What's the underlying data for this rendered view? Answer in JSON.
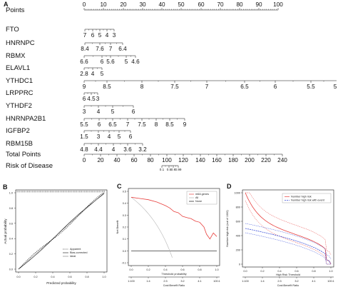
{
  "panels": {
    "A": {
      "letter": "A",
      "rows": [
        {
          "label": "Points",
          "ticks": [
            "0",
            "10",
            "20",
            "30",
            "40",
            "50",
            "60",
            "70",
            "80",
            "90",
            "100"
          ]
        },
        {
          "label": "FTO",
          "ticks": [
            "7",
            "6",
            "5",
            "4",
            "3"
          ]
        },
        {
          "label": "HNRNPC",
          "ticks": [
            "8.4",
            "7.6",
            "7",
            "6.4"
          ]
        },
        {
          "label": "RBMX",
          "ticks": [
            "6.6",
            "6",
            "5.6",
            "5",
            "4.6"
          ]
        },
        {
          "label": "ELAVL1",
          "ticks": [
            "2.8",
            "4",
            "5"
          ]
        },
        {
          "label": "YTHDC1",
          "ticks": [
            "9",
            "8.5",
            "8",
            "7.5",
            "7",
            "6.5",
            "6",
            "5.5",
            "5"
          ]
        },
        {
          "label": "LRPPRC",
          "ticks": [
            "6",
            "4.5",
            "3"
          ]
        },
        {
          "label": "YTHDF2",
          "ticks": [
            "3",
            "4",
            "5",
            "6"
          ]
        },
        {
          "label": "HNRNPA2B1",
          "ticks": [
            "5.5",
            "6",
            "6.5",
            "7",
            "7.5",
            "8",
            "8.5",
            "9"
          ]
        },
        {
          "label": "IGFBP2",
          "ticks": [
            "1.5",
            "3",
            "4",
            "5",
            "6"
          ]
        },
        {
          "label": "RBM15B",
          "ticks": [
            "4.8",
            "4.4",
            "4",
            "3.6",
            "3.2"
          ]
        },
        {
          "label": "Total Points",
          "ticks": [
            "0",
            "20",
            "40",
            "60",
            "80",
            "100",
            "120",
            "140",
            "160",
            "180",
            "200",
            "220",
            "240"
          ]
        },
        {
          "label": "Risk of Disease",
          "ticks": [
            "0.1",
            "0.5",
            "0.9",
            "0.99"
          ]
        }
      ]
    },
    "B": {
      "letter": "B",
      "xlabel": "Predicted probability",
      "ylabel": "Actual probability",
      "ticks": [
        "0.0",
        "0.2",
        "0.4",
        "0.6",
        "0.8",
        "1.0"
      ],
      "legend": [
        "Apparent",
        "Bias-corrected",
        "Ideal"
      ]
    },
    "C": {
      "letter": "C",
      "xlabel": "Threshold probability",
      "ylabel": "Net Benefit",
      "xticks": [
        "0.0",
        "0.2",
        "0.4",
        "0.6",
        "0.8",
        "1.0"
      ],
      "yticks": [
        "0.5",
        "0.4",
        "0.3",
        "0.2",
        "0.1",
        "0.0",
        "-0.1"
      ],
      "cb_label": "Cost:Benefit Ratio",
      "cb_ticks": [
        "1:100",
        "1:4",
        "2:3",
        "3:2",
        "4:1",
        "100:1"
      ],
      "legend": [
        "m6A genes",
        "All",
        "None"
      ]
    },
    "D": {
      "letter": "D",
      "xlabel": "High Risk Threshold",
      "ylabel": "Number high risk (out of 1000)",
      "xticks": [
        "0.0",
        "0.2",
        "0.4",
        "0.6",
        "0.8",
        "1.0"
      ],
      "yticks": [
        "1000",
        "800",
        "600",
        "400",
        "200",
        "0"
      ],
      "cb_label": "Cost:Benefit Ratio",
      "cb_ticks": [
        "1:100",
        "1:4",
        "2:3",
        "3:2",
        "4:1",
        "100:1"
      ],
      "legend": [
        "Number high risk",
        "Number high risk with event"
      ]
    }
  },
  "colors": {
    "red": "#e8403e",
    "blue": "#3b4fd8",
    "gray": "#b5b5b5",
    "black": "#111111"
  }
}
